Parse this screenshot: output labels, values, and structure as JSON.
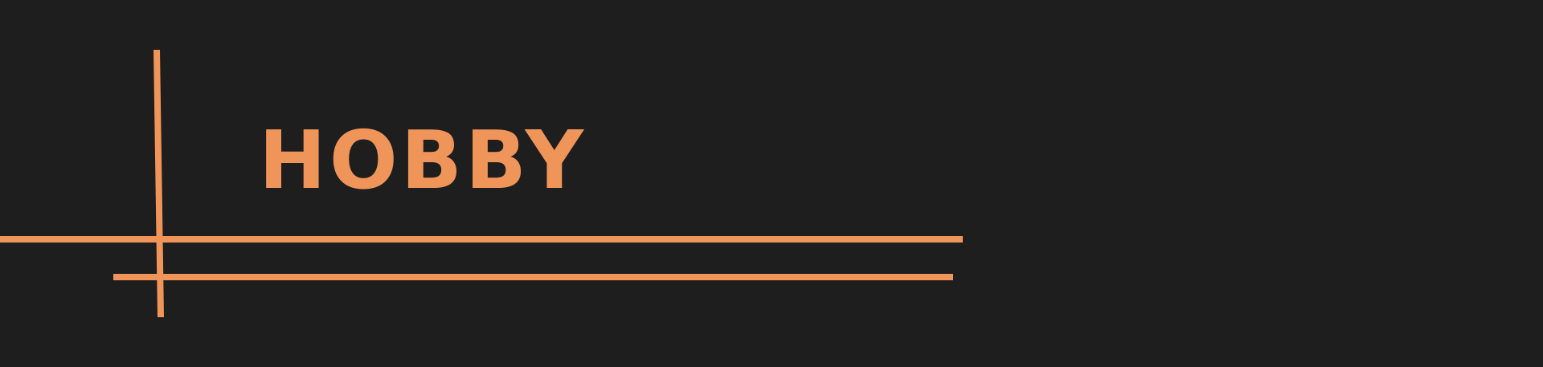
{
  "banner": {
    "title": "HOBBY"
  },
  "colors": {
    "background": "#1e1e1e",
    "accent": "#f0955a"
  }
}
